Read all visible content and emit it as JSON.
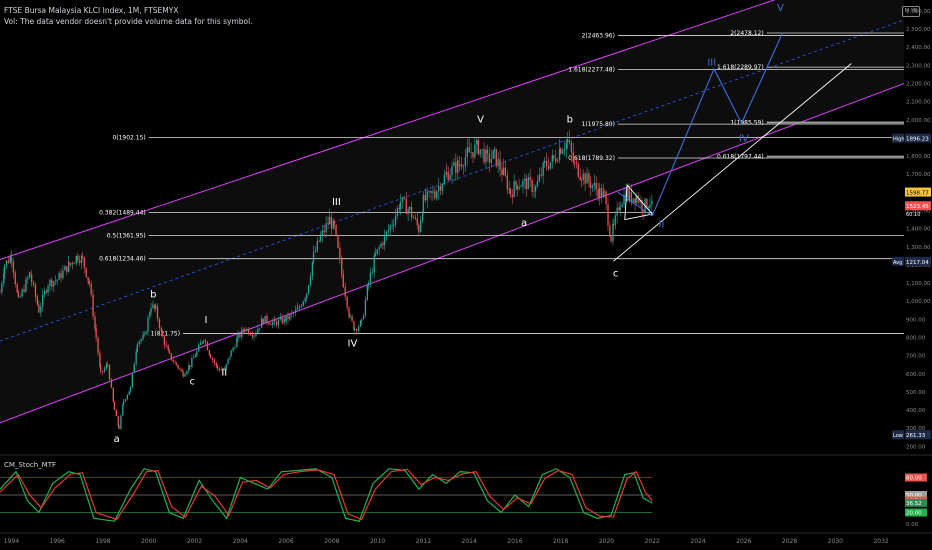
{
  "header": {
    "symbol_line": "FTSE Bursa Malaysia KLCI Index, 1M, FTSEMYX",
    "volume_note": "Vol: The data vendor doesn't provide volume data for this symbol."
  },
  "indicator_label": "CM_Stoch_MTF",
  "colors": {
    "background": "#000000",
    "candle_up": "#26a69a",
    "candle_down": "#ef5350",
    "channel": "#e040fb",
    "midline": "#2962ff",
    "projection": "#3f6fd8",
    "fib": "#e0e0e0",
    "stoch_k": "#22b14c",
    "stoch_d": "#e53935"
  },
  "chart_data": [
    {
      "type": "candlestick",
      "title": "FTSE Bursa Malaysia KLCI Index, 1M, FTSEMYX",
      "x_axis_years": [
        "1994",
        "1996",
        "1998",
        "2000",
        "2002",
        "2004",
        "2006",
        "2008",
        "2010",
        "2012",
        "2014",
        "2016",
        "2018",
        "2020",
        "2022",
        "2024",
        "2026",
        "2028",
        "2030",
        "2032"
      ],
      "y_axis_ticks": [
        "2,600.00",
        "2,500.00",
        "2,400.00",
        "2,300.00",
        "2,200.00",
        "2,100.00",
        "2,000.00",
        "1,900.00",
        "1,800.00",
        "1,700.00",
        "1,600.00",
        "1,500.00",
        "1,400.00",
        "1,300.00",
        "1,200.00",
        "1,100.00",
        "1,000.00",
        "900.00",
        "800.00",
        "700.00",
        "600.00",
        "500.00",
        "400.00",
        "300.00",
        "200.00"
      ],
      "ylim": [
        180,
        2660
      ],
      "xlim": [
        1993.5,
        2033
      ],
      "price_path": [
        [
          1993.5,
          1050
        ],
        [
          1993.7,
          1200
        ],
        [
          1994.0,
          1250
        ],
        [
          1994.3,
          1000
        ],
        [
          1994.8,
          1150
        ],
        [
          1995.2,
          950
        ],
        [
          1995.6,
          1100
        ],
        [
          1996.0,
          1120
        ],
        [
          1996.5,
          1200
        ],
        [
          1996.9,
          1250
        ],
        [
          1997.1,
          1230
        ],
        [
          1997.4,
          1100
        ],
        [
          1997.7,
          800
        ],
        [
          1997.9,
          600
        ],
        [
          1998.2,
          650
        ],
        [
          1998.5,
          400
        ],
        [
          1998.7,
          300
        ],
        [
          1998.9,
          450
        ],
        [
          1999.2,
          520
        ],
        [
          1999.5,
          780
        ],
        [
          1999.8,
          800
        ],
        [
          2000.1,
          980
        ],
        [
          2000.3,
          950
        ],
        [
          2000.6,
          800
        ],
        [
          2000.9,
          700
        ],
        [
          2001.2,
          650
        ],
        [
          2001.5,
          600
        ],
        [
          2001.8,
          650
        ],
        [
          2002.1,
          720
        ],
        [
          2002.4,
          800
        ],
        [
          2002.7,
          700
        ],
        [
          2003.0,
          630
        ],
        [
          2003.3,
          620
        ],
        [
          2003.6,
          720
        ],
        [
          2003.9,
          800
        ],
        [
          2004.2,
          850
        ],
        [
          2004.6,
          820
        ],
        [
          2005.0,
          900
        ],
        [
          2005.5,
          880
        ],
        [
          2006.0,
          900
        ],
        [
          2006.5,
          950
        ],
        [
          2006.9,
          1050
        ],
        [
          2007.2,
          1250
        ],
        [
          2007.5,
          1350
        ],
        [
          2007.9,
          1450
        ],
        [
          2008.1,
          1400
        ],
        [
          2008.5,
          1100
        ],
        [
          2008.8,
          900
        ],
        [
          2009.0,
          850
        ],
        [
          2009.3,
          880
        ],
        [
          2009.6,
          1100
        ],
        [
          2009.9,
          1250
        ],
        [
          2010.3,
          1350
        ],
        [
          2010.7,
          1450
        ],
        [
          2011.0,
          1550
        ],
        [
          2011.4,
          1500
        ],
        [
          2011.8,
          1400
        ],
        [
          2012.0,
          1550
        ],
        [
          2012.5,
          1600
        ],
        [
          2013.0,
          1700
        ],
        [
          2013.5,
          1750
        ],
        [
          2014.0,
          1820
        ],
        [
          2014.4,
          1850
        ],
        [
          2014.8,
          1780
        ],
        [
          2015.1,
          1800
        ],
        [
          2015.5,
          1700
        ],
        [
          2015.8,
          1600
        ],
        [
          2016.1,
          1650
        ],
        [
          2016.5,
          1650
        ],
        [
          2016.9,
          1620
        ],
        [
          2017.3,
          1750
        ],
        [
          2017.7,
          1780
        ],
        [
          2018.0,
          1850
        ],
        [
          2018.3,
          1880
        ],
        [
          2018.6,
          1750
        ],
        [
          2018.9,
          1700
        ],
        [
          2019.3,
          1650
        ],
        [
          2019.7,
          1600
        ],
        [
          2019.9,
          1580
        ],
        [
          2020.2,
          1350
        ],
        [
          2020.3,
          1400
        ],
        [
          2020.6,
          1550
        ],
        [
          2020.9,
          1600
        ],
        [
          2021.0,
          1570
        ],
        [
          2021.3,
          1580
        ],
        [
          2021.6,
          1520
        ],
        [
          2021.9,
          1550
        ],
        [
          2022.0,
          1510
        ]
      ],
      "channel": {
        "upper_line": [
          [
            1993.5,
            1230
          ],
          [
            2033,
            2900
          ]
        ],
        "lower_line": [
          [
            1993.5,
            330
          ],
          [
            2033,
            2200
          ]
        ],
        "midline": [
          [
            1993.5,
            780
          ],
          [
            2033,
            2550
          ]
        ]
      },
      "fib_levels": [
        {
          "label": "0(1902.15)",
          "value": 1902.15,
          "x_range": [
            2000,
            2033
          ]
        },
        {
          "label": "0.382(1489.44)",
          "value": 1489.44,
          "x_range": [
            2000,
            2022
          ]
        },
        {
          "label": "0.5(1361.95)",
          "value": 1361.95,
          "x_range": [
            2000,
            2033
          ]
        },
        {
          "label": "0.618(1234.46)",
          "value": 1234.46,
          "x_range": [
            2000,
            2033
          ]
        },
        {
          "label": "1(821.75)",
          "value": 821.75,
          "x_range": [
            2001.5,
            2033
          ]
        },
        {
          "label": "2(2463.96)",
          "value": 2463.96,
          "x_range": [
            2020.5,
            2033
          ]
        },
        {
          "label": "1.618(2277.48)",
          "value": 2277.48,
          "x_range": [
            2020.5,
            2033
          ]
        },
        {
          "label": "1(1975.80)",
          "value": 1975.8,
          "x_range": [
            2020.5,
            2033
          ]
        },
        {
          "label": "0.618(1789.32)",
          "value": 1789.32,
          "x_range": [
            2020.5,
            2033
          ]
        },
        {
          "label": "2(2478.12)",
          "value": 2478.12,
          "x_range": [
            2027,
            2033
          ]
        },
        {
          "label": "1.618(2289.97)",
          "value": 2289.97,
          "x_range": [
            2027,
            2033
          ]
        },
        {
          "label": "1(1985.59)",
          "value": 1985.59,
          "x_range": [
            2027,
            2033
          ]
        },
        {
          "label": "0.618(1797.44)",
          "value": 1797.44,
          "x_range": [
            2027,
            2033
          ]
        }
      ],
      "wave_labels": [
        {
          "text": "a",
          "x": 1998.6,
          "y": 225,
          "color": "#ffffff"
        },
        {
          "text": "b",
          "x": 2000.2,
          "y": 1020,
          "color": "#ffffff"
        },
        {
          "text": "c",
          "x": 2001.9,
          "y": 540,
          "color": "#ffffff"
        },
        {
          "text": "I",
          "x": 2002.5,
          "y": 880,
          "color": "#ffffff"
        },
        {
          "text": "II",
          "x": 2003.3,
          "y": 590,
          "color": "#ffffff"
        },
        {
          "text": "III",
          "x": 2008.2,
          "y": 1530,
          "color": "#ffffff"
        },
        {
          "text": "IV",
          "x": 2008.9,
          "y": 750,
          "color": "#ffffff"
        },
        {
          "text": "V",
          "x": 2014.5,
          "y": 1985,
          "color": "#ffffff"
        },
        {
          "text": "a",
          "x": 2016.4,
          "y": 1415,
          "color": "#ffffff"
        },
        {
          "text": "b",
          "x": 2018.4,
          "y": 1985,
          "color": "#ffffff"
        },
        {
          "text": "c",
          "x": 2020.4,
          "y": 1135,
          "color": "#ffffff"
        },
        {
          "text": "II",
          "x": 2022.4,
          "y": 1405,
          "color": "#3f6fd8"
        },
        {
          "text": "III",
          "x": 2024.6,
          "y": 2300,
          "color": "#3f6fd8"
        },
        {
          "text": "IV",
          "x": 2026.0,
          "y": 1880,
          "color": "#3f6fd8"
        },
        {
          "text": "V",
          "x": 2027.6,
          "y": 2600,
          "color": "#3f6fd8"
        }
      ],
      "projection_path": [
        [
          2022.0,
          1470
        ],
        [
          2024.7,
          2280
        ],
        [
          2025.9,
          1980
        ],
        [
          2027.7,
          2480
        ]
      ],
      "triangle": [
        [
          2020.9,
          1640
        ],
        [
          2022.0,
          1480
        ],
        [
          2020.8,
          1450
        ]
      ],
      "support_line": [
        [
          2020.3,
          1220
        ],
        [
          2030.7,
          2310
        ]
      ],
      "price_markers": [
        {
          "label": "2,600.00",
          "value": 2600,
          "bg": "#000000",
          "fg": "#8a8a8a"
        },
        {
          "label": "High",
          "value": 1896.23,
          "tag": "1896.23",
          "bg": "#1e2a4a",
          "fg": "#ffffff"
        },
        {
          "label": "",
          "value": 1598.77,
          "tag": "1598.77",
          "bg": "#f5c542",
          "fg": "#000000"
        },
        {
          "label": "",
          "value": 1523.45,
          "tag": "1523.45",
          "bg": "#ef5350",
          "fg": "#ffffff",
          "sub": "60:10"
        },
        {
          "label": "Avg",
          "value": 1217.04,
          "tag": "1217.04",
          "bg": "#1e2a4a",
          "fg": "#ffffff"
        },
        {
          "label": "Low",
          "value": 261.33,
          "tag": "261.33",
          "bg": "#1e2a4a",
          "fg": "#ffffff"
        }
      ]
    },
    {
      "type": "line",
      "title": "CM_Stoch_MTF",
      "ylim": [
        -10,
        110
      ],
      "y_axis_ticks": [
        "80.00",
        "50.00",
        "20.00",
        "0.00"
      ],
      "levels": [
        80,
        50,
        20
      ],
      "value_tags": [
        {
          "tag": "80.00",
          "value": 80,
          "bg": "#ef5350"
        },
        {
          "tag": "50.00",
          "value": 50,
          "bg": "#a0a0a0"
        },
        {
          "tag": "40.54",
          "value": 40.54,
          "bg": "#ef5350"
        },
        {
          "tag": "36.52",
          "value": 36.52,
          "bg": "#2e8b57"
        },
        {
          "tag": "20.00",
          "value": 20,
          "bg": "#22b14c"
        }
      ],
      "series": [
        {
          "name": "K",
          "values": [
            [
              1993.5,
              60
            ],
            [
              1994.2,
              90
            ],
            [
              1994.7,
              40
            ],
            [
              1995.2,
              20
            ],
            [
              1995.8,
              70
            ],
            [
              1996.5,
              90
            ],
            [
              1997.0,
              85
            ],
            [
              1997.6,
              10
            ],
            [
              1998.5,
              5
            ],
            [
              1999.2,
              60
            ],
            [
              1999.8,
              95
            ],
            [
              2000.3,
              90
            ],
            [
              2000.9,
              20
            ],
            [
              2001.5,
              10
            ],
            [
              2002.2,
              75
            ],
            [
              2002.8,
              40
            ],
            [
              2003.4,
              10
            ],
            [
              2004.0,
              80
            ],
            [
              2004.6,
              70
            ],
            [
              2005.2,
              60
            ],
            [
              2005.8,
              90
            ],
            [
              2006.5,
              92
            ],
            [
              2007.3,
              95
            ],
            [
              2008.0,
              80
            ],
            [
              2008.6,
              10
            ],
            [
              2009.2,
              5
            ],
            [
              2009.8,
              70
            ],
            [
              2010.5,
              95
            ],
            [
              2011.2,
              92
            ],
            [
              2011.8,
              60
            ],
            [
              2012.4,
              85
            ],
            [
              2013.0,
              70
            ],
            [
              2013.6,
              90
            ],
            [
              2014.2,
              88
            ],
            [
              2014.8,
              40
            ],
            [
              2015.4,
              20
            ],
            [
              2016.0,
              50
            ],
            [
              2016.6,
              30
            ],
            [
              2017.2,
              85
            ],
            [
              2017.8,
              95
            ],
            [
              2018.4,
              80
            ],
            [
              2019.0,
              20
            ],
            [
              2019.6,
              10
            ],
            [
              2020.2,
              15
            ],
            [
              2020.8,
              85
            ],
            [
              2021.2,
              88
            ],
            [
              2021.6,
              45
            ],
            [
              2022.0,
              36
            ]
          ]
        },
        {
          "name": "D",
          "values": [
            [
              1993.5,
              55
            ],
            [
              1994.3,
              85
            ],
            [
              1994.8,
              50
            ],
            [
              1995.3,
              28
            ],
            [
              1995.9,
              62
            ],
            [
              1996.6,
              86
            ],
            [
              1997.1,
              88
            ],
            [
              1997.7,
              20
            ],
            [
              1998.6,
              8
            ],
            [
              1999.3,
              50
            ],
            [
              1999.9,
              90
            ],
            [
              2000.4,
              92
            ],
            [
              2001.0,
              30
            ],
            [
              2001.6,
              12
            ],
            [
              2002.3,
              65
            ],
            [
              2002.9,
              48
            ],
            [
              2003.5,
              15
            ],
            [
              2004.1,
              72
            ],
            [
              2004.7,
              75
            ],
            [
              2005.3,
              62
            ],
            [
              2005.9,
              85
            ],
            [
              2006.6,
              90
            ],
            [
              2007.4,
              93
            ],
            [
              2008.1,
              85
            ],
            [
              2008.7,
              18
            ],
            [
              2009.3,
              8
            ],
            [
              2009.9,
              60
            ],
            [
              2010.6,
              90
            ],
            [
              2011.3,
              94
            ],
            [
              2011.9,
              68
            ],
            [
              2012.5,
              80
            ],
            [
              2013.1,
              75
            ],
            [
              2013.7,
              86
            ],
            [
              2014.3,
              90
            ],
            [
              2014.9,
              48
            ],
            [
              2015.5,
              25
            ],
            [
              2016.1,
              45
            ],
            [
              2016.7,
              35
            ],
            [
              2017.3,
              78
            ],
            [
              2017.9,
              92
            ],
            [
              2018.5,
              85
            ],
            [
              2019.1,
              28
            ],
            [
              2019.7,
              14
            ],
            [
              2020.3,
              12
            ],
            [
              2020.9,
              78
            ],
            [
              2021.3,
              90
            ],
            [
              2021.7,
              55
            ],
            [
              2022.0,
              40
            ]
          ]
        }
      ]
    }
  ]
}
